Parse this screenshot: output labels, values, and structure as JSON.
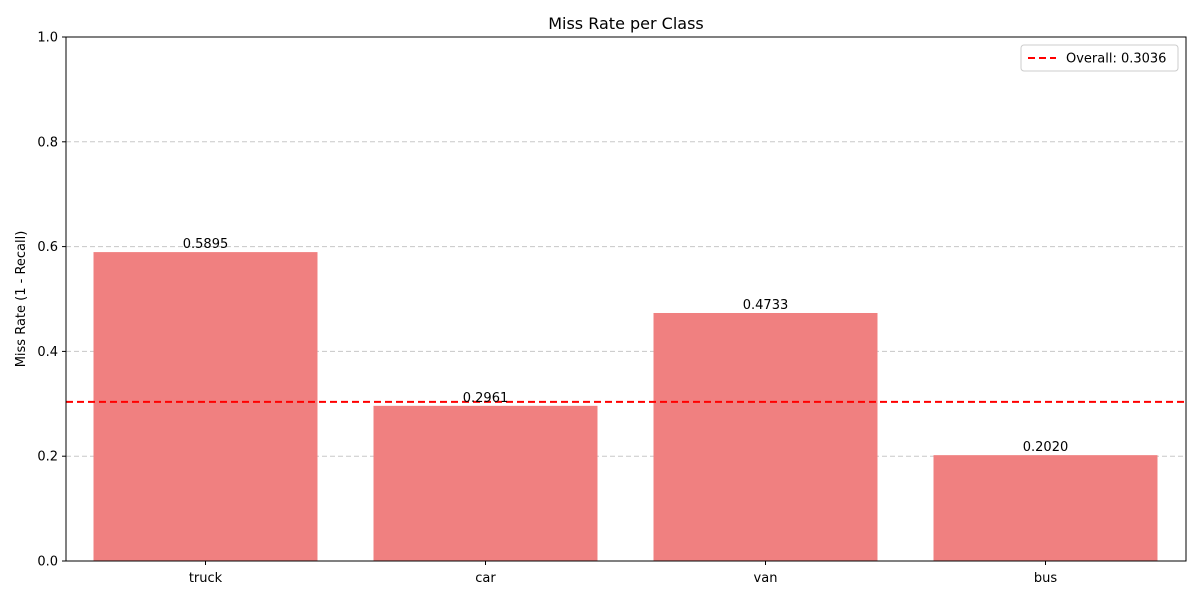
{
  "chart_data": {
    "type": "bar",
    "title": "Miss Rate per Class",
    "xlabel": "",
    "ylabel": "Miss Rate (1 - Recall)",
    "categories": [
      "truck",
      "car",
      "van",
      "bus"
    ],
    "values": [
      0.5895,
      0.2961,
      0.4733,
      0.202
    ],
    "value_labels": [
      "0.5895",
      "0.2961",
      "0.4733",
      "0.2020"
    ],
    "ylim": [
      0,
      1
    ],
    "yticks": [
      0.0,
      0.2,
      0.4,
      0.6,
      0.8,
      1.0
    ],
    "ytick_labels": [
      "0.0",
      "0.2",
      "0.4",
      "0.6",
      "0.8",
      "1.0"
    ],
    "grid": "y-dashed",
    "bar_color": "#f08080",
    "reference_line": {
      "value": 0.3036,
      "label": "Overall: 0.3036",
      "color": "#ff0000",
      "style": "dashed"
    },
    "legend": {
      "placement": "top-right",
      "entries": [
        "Overall: 0.3036"
      ]
    }
  }
}
